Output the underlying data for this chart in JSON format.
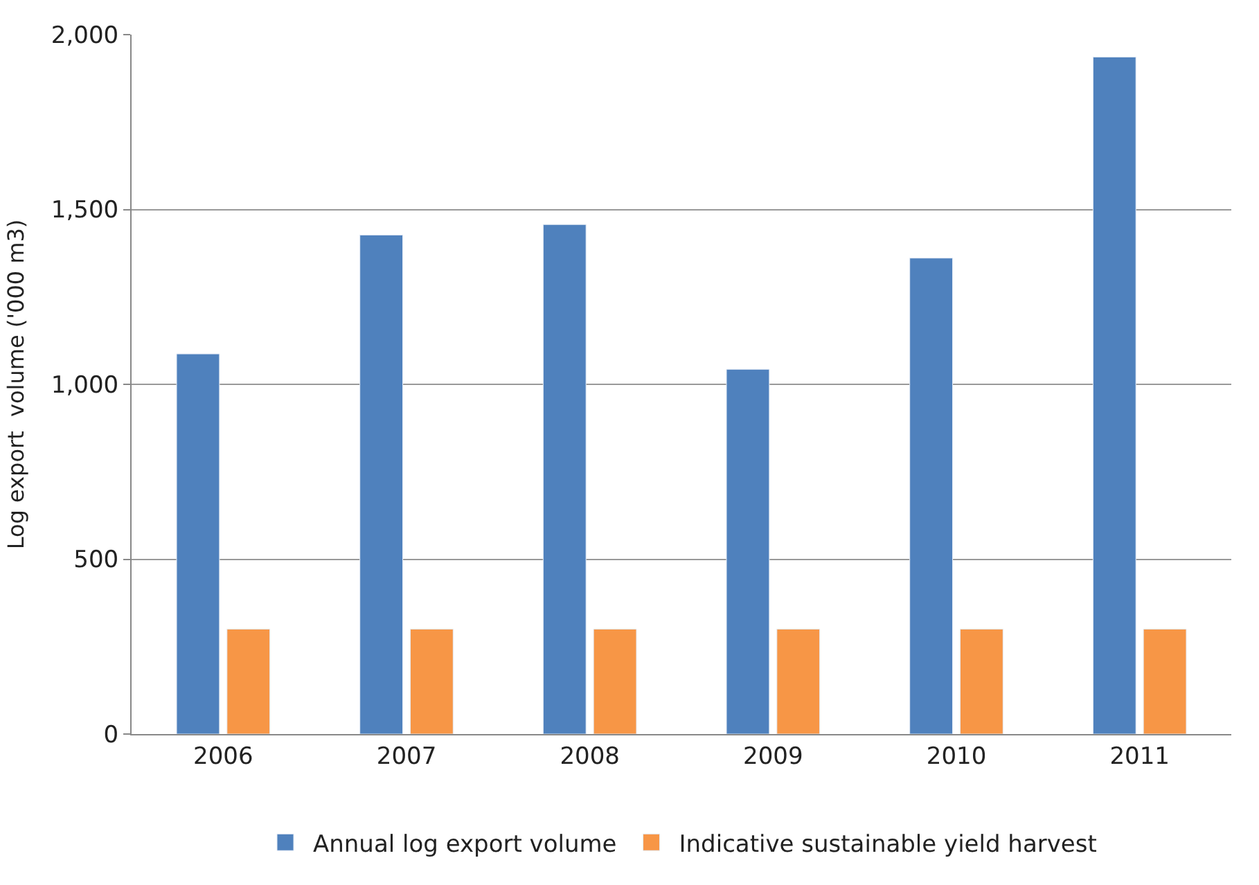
{
  "chart_data": {
    "type": "bar",
    "ylabel": "Log export  volume ('000 m3)",
    "categories": [
      "2006",
      "2007",
      "2008",
      "2009",
      "2010",
      "2011"
    ],
    "series": [
      {
        "name": "Annual log export volume",
        "color": "#4f81bd",
        "values": [
          1087,
          1427,
          1457,
          1043,
          1361,
          1936
        ]
      },
      {
        "name": "Indicative sustainable yield harvest",
        "color": "#f79646",
        "values": [
          300,
          300,
          300,
          300,
          300,
          300
        ]
      }
    ],
    "ylim": [
      0,
      2000
    ],
    "yticks": [
      {
        "value": 0,
        "label": "0"
      },
      {
        "value": 500,
        "label": "500"
      },
      {
        "value": 1000,
        "label": "1,000"
      },
      {
        "value": 1500,
        "label": "1,500"
      },
      {
        "value": 2000,
        "label": "2,000"
      }
    ],
    "grid": "y",
    "legend": "bottom"
  }
}
